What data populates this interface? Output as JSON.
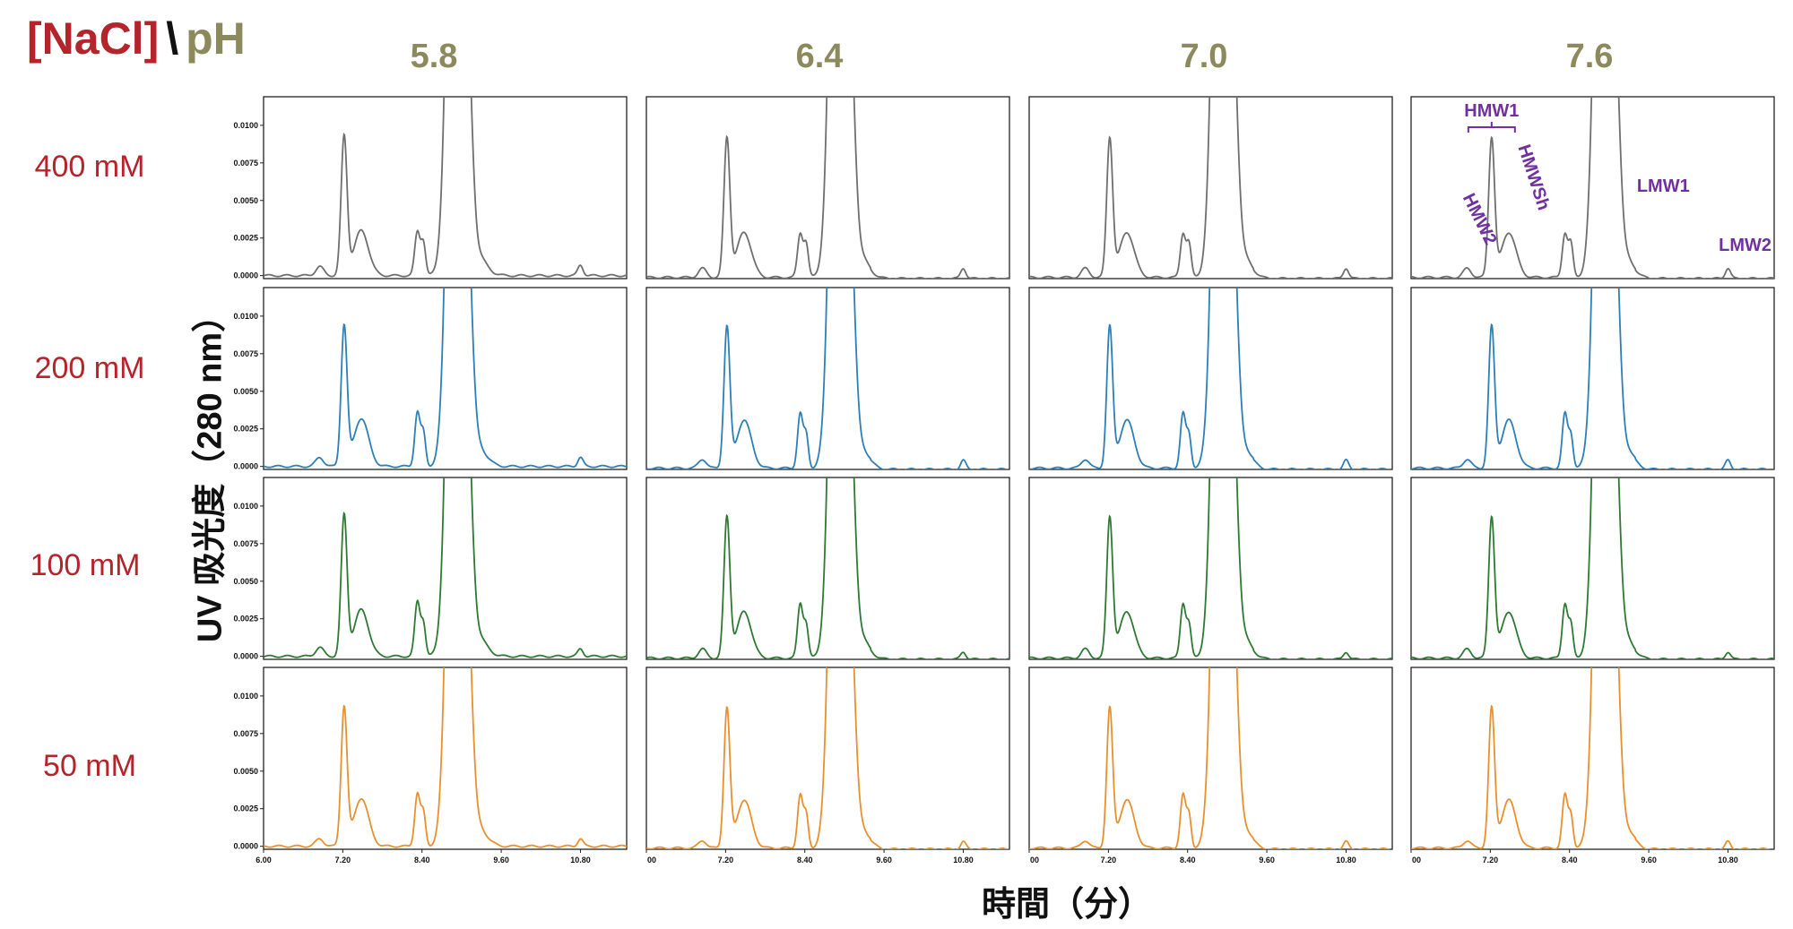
{
  "header": {
    "nacl": "[NaCl]",
    "sep": "\\",
    "ph": "pH"
  },
  "ph_values": [
    "5.8",
    "6.4",
    "7.0",
    "7.6"
  ],
  "nacl_values": [
    "400 mM",
    "200 mM",
    "100 mM",
    "50 mM"
  ],
  "ylabel": "UV 吸光度（280 nm）",
  "xlabel": "時間（分）",
  "colors": {
    "title_red": "#b5232b",
    "title_olive": "#8c8a5d",
    "annotation_purple": "#7030a0"
  },
  "chart_data": {
    "type": "line",
    "layout": "4x4 grid of chromatograms (rows: [NaCl], columns: pH)",
    "x_axis": {
      "ticks": [
        6.0,
        7.2,
        8.4,
        9.6,
        10.8
      ],
      "range": [
        6.0,
        11.5
      ]
    },
    "y_axis": {
      "ticks": [
        0.0,
        0.0025,
        0.005,
        0.0075,
        0.01
      ],
      "range": [
        -0.0002,
        0.0119
      ]
    },
    "tick_label_sets": [
      [
        "6.00",
        "7.20",
        "8.40",
        "9.60",
        "10.80"
      ],
      [
        "00",
        "7.20",
        "8.40",
        "9.60",
        "10.80"
      ]
    ],
    "y_tick_labels": [
      "0.0000",
      "0.0025",
      "0.0050",
      "0.0075",
      "0.0100"
    ],
    "row_colors": [
      "#6f6f6f",
      "#2d7fb8",
      "#2f7a32",
      "#e8902e"
    ],
    "peaks_x": [
      6.85,
      7.22,
      7.48,
      8.33,
      8.42,
      8.93,
      9.15,
      9.22,
      10.8
    ],
    "peak_heights": {
      "HMW2": [
        0.0006,
        0.0006,
        0.0006,
        0.0005
      ],
      "HMW1": [
        0.0092,
        0.0093,
        0.0093,
        0.0092
      ],
      "HMWSh": [
        0.003,
        0.0032,
        0.0031,
        0.0032
      ],
      "LMW1": [
        0.0029,
        0.0036,
        0.0036,
        0.0035
      ],
      "LMW2": [
        0.0007,
        0.0006,
        0.0005,
        0.0005
      ]
    },
    "annotations": [
      {
        "label": "HMW1",
        "x": 7.22
      },
      {
        "label": "HMWSh",
        "x": 7.7
      },
      {
        "label": "HMW2",
        "x": 6.75
      },
      {
        "label": "LMW1",
        "x": 9.5
      },
      {
        "label": "LMW2",
        "x": 11.0
      }
    ]
  }
}
